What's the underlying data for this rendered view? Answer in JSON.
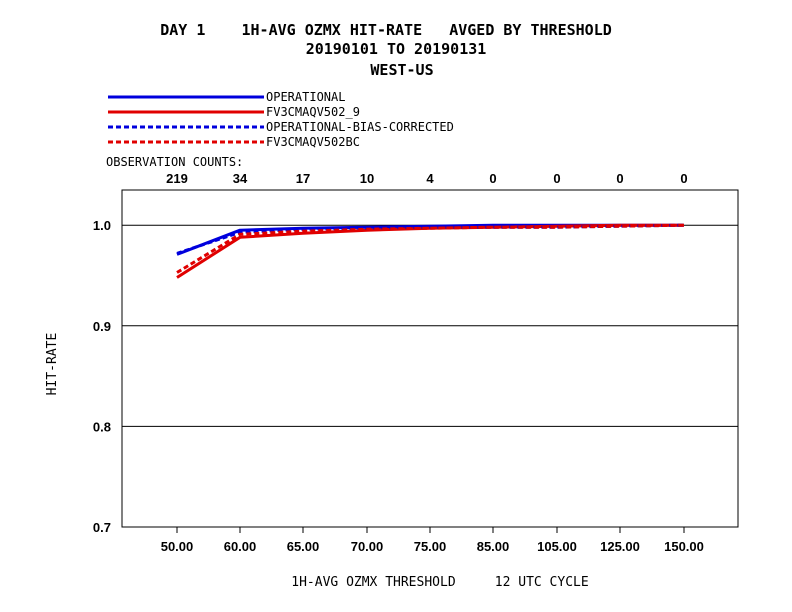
{
  "header": {
    "title_line1": "DAY 1    1H-AVG OZMX HIT-RATE   AVGED BY THRESHOLD",
    "title_line2": "20190101 TO 20190131",
    "title_line3": "WEST-US"
  },
  "legend_labels": [
    "OPERATIONAL",
    "FV3CMAQV502_9",
    "OPERATIONAL-BIAS-CORRECTED",
    "FV3CMAQV502BC"
  ],
  "obs_counts_label": "OBSERVATION COUNTS:",
  "chart_data": {
    "type": "line",
    "title": "DAY 1    1H-AVG OZMX HIT-RATE   AVGED BY THRESHOLD",
    "subtitle": "20190101 TO 20190131 WEST-US",
    "xlabel": "1H-AVG OZMX THRESHOLD     12 UTC CYCLE",
    "ylabel": "HIT-RATE",
    "categories": [
      "50.00",
      "60.00",
      "65.00",
      "70.00",
      "75.00",
      "85.00",
      "105.00",
      "125.00",
      "150.00"
    ],
    "observation_counts": [
      "219",
      "34",
      "17",
      "10",
      "4",
      "0",
      "0",
      "0",
      "0"
    ],
    "ylim": [
      0.7,
      1.035
    ],
    "yticks": [
      "0.7",
      "0.8",
      "0.9",
      "1.0"
    ],
    "grid": "horizontal",
    "legend_position": "top-left",
    "series": [
      {
        "name": "OPERATIONAL",
        "color": "#0000dd",
        "dash": "solid",
        "values": [
          0.971,
          0.995,
          0.997,
          0.998,
          0.999,
          1.0,
          1.0,
          1.0,
          1.0
        ]
      },
      {
        "name": "FV3CMAQV502_9",
        "color": "#e00000",
        "dash": "solid",
        "values": [
          0.948,
          0.988,
          0.992,
          0.995,
          0.997,
          0.998,
          0.999,
          1.0,
          1.0
        ]
      },
      {
        "name": "OPERATIONAL-BIAS-CORRECTED",
        "color": "#0000dd",
        "dash": "dashed",
        "values": [
          0.972,
          0.993,
          0.996,
          0.997,
          0.998,
          0.998,
          0.998,
          0.999,
          1.0
        ]
      },
      {
        "name": "FV3CMAQV502BC",
        "color": "#e00000",
        "dash": "dashed",
        "values": [
          0.953,
          0.991,
          0.994,
          0.996,
          0.997,
          0.998,
          0.998,
          0.999,
          1.0
        ]
      }
    ]
  }
}
